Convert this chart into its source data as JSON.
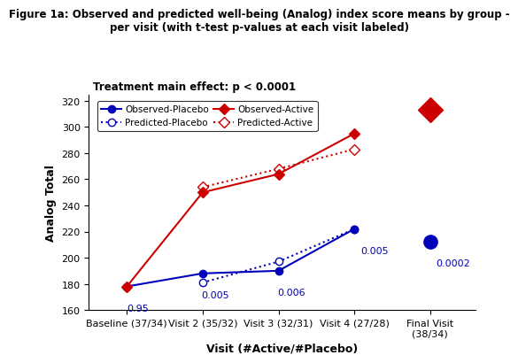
{
  "title": "Figure 1a: Observed and predicted well-being (Analog) index score means by group -\nper visit (with t-test p-values at each visit labeled)",
  "xlabel": "Visit (#Active/#Placebo)",
  "ylabel": "Analog Total",
  "ylim": [
    160,
    325
  ],
  "yticks": [
    160,
    180,
    200,
    220,
    240,
    260,
    280,
    300,
    320
  ],
  "x_positions": [
    0,
    1,
    2,
    3,
    4
  ],
  "x_labels": [
    "Baseline (37/34)",
    "Visit 2 (35/32)",
    "Visit 3 (32/31)",
    "Visit 4 (27/28)",
    "Final Visit\n(38/34)"
  ],
  "obs_placebo": [
    178,
    188,
    190,
    222,
    212
  ],
  "pred_placebo": [
    null,
    181,
    197,
    222,
    null
  ],
  "obs_active": [
    178,
    250,
    264,
    295,
    313
  ],
  "pred_active": [
    null,
    254,
    268,
    283,
    null
  ],
  "p_values": [
    "0.95",
    "0.005",
    "0.006",
    "0.005",
    "0.0002"
  ],
  "treatment_text": "Treatment main effect: p < 0.0001",
  "blue_color": "#0000bb",
  "red_color": "#cc0000",
  "bg_color": "#ffffff"
}
